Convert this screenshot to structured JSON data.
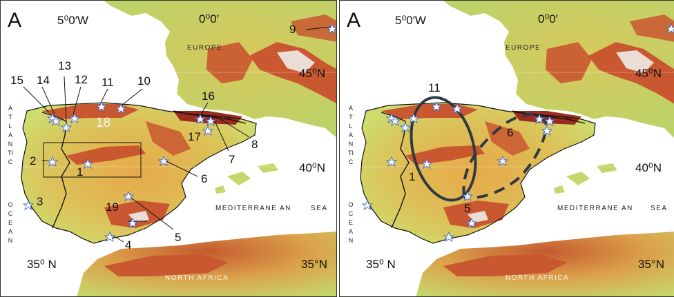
{
  "panels": [
    {
      "id": "left",
      "letter": "A",
      "coords": {
        "lon_west": "5⁰0′W",
        "lon_zero": "0⁰0′",
        "lat_45": "45⁰N",
        "lat_40": "40⁰N",
        "lat_35": "35⁰ N",
        "lat_35_right": "35°N"
      },
      "regions": {
        "europe": "EUROPE",
        "mediterranean": "MEDITERRANE AN",
        "sea": "SEA",
        "north_africa": "NORTH   AFRICA",
        "atlantic": "ATLANTIC",
        "ocean": "OCEAN"
      },
      "numbers": [
        "1",
        "2",
        "3",
        "4",
        "5",
        "6",
        "7",
        "8",
        "9",
        "10",
        "11",
        "12",
        "13",
        "14",
        "15",
        "16",
        "17",
        "18",
        "19"
      ]
    },
    {
      "id": "right",
      "letter": "A",
      "coords": {
        "lon_west": "5⁰0′W",
        "lon_zero": "0⁰0′",
        "lat_45": "45⁰N",
        "lat_40": "40⁰N",
        "lat_35": "35⁰ N",
        "lat_35_right": "35°N"
      },
      "regions": {
        "europe": "EUROPE",
        "mediterranean": "MEDITERRANE AN",
        "sea": "SEA",
        "north_africa": "NORTH   AFRICA",
        "atlantic": "ATLANTIC",
        "ocean": "OCEAN"
      },
      "numbers": [
        "11",
        "6",
        "1",
        "5"
      ]
    }
  ],
  "colors": {
    "sea": "#ffffff",
    "lowland": "#d9e27a",
    "plain": "#b8d36a",
    "mid": "#e3b34f",
    "high": "#c9572f",
    "peak": "#9b2a1f",
    "snow": "#f2e8e4",
    "border": "#111111",
    "star": "#3d6bd6"
  }
}
